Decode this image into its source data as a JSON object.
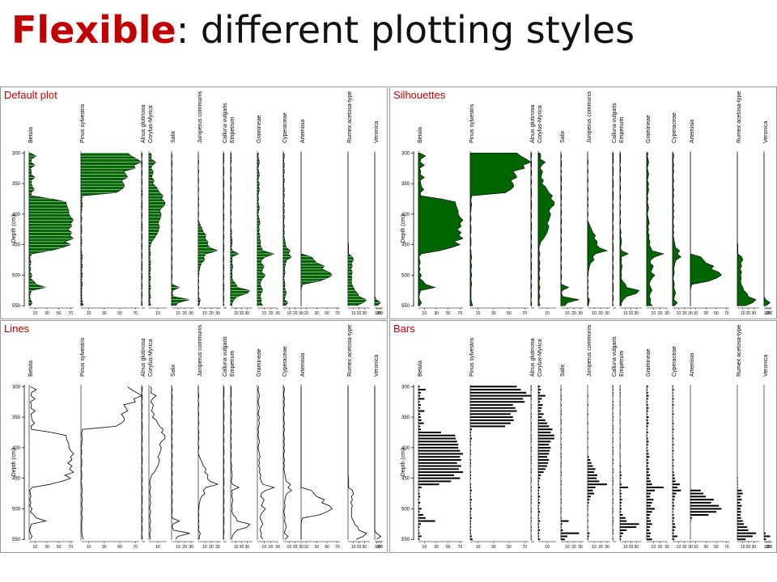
{
  "slide": {
    "title_accent": "Flexible",
    "title_rest": ": different plotting styles"
  },
  "colors": {
    "accent": "#c00000",
    "fill": "#006400",
    "line": "#000000",
    "frame": "#999999"
  },
  "chart_data": {
    "type": "area",
    "ylabel": "Depth (cm)",
    "yticks": [
      300,
      350,
      400,
      450,
      500,
      550
    ],
    "ylim": [
      297,
      551
    ],
    "panels": [
      {
        "title": "Default plot",
        "style": "fill-with-lines"
      },
      {
        "title": "Silhouettes",
        "style": "fill"
      },
      {
        "title": "Lines",
        "style": "line"
      },
      {
        "title": "Bars",
        "style": "bars"
      }
    ],
    "depths": [
      300,
      305,
      310,
      315,
      320,
      325,
      330,
      335,
      340,
      345,
      350,
      355,
      360,
      365,
      370,
      375,
      380,
      385,
      390,
      395,
      400,
      405,
      410,
      415,
      420,
      425,
      430,
      435,
      440,
      445,
      450,
      455,
      460,
      465,
      470,
      475,
      480,
      485,
      490,
      495,
      500,
      505,
      510,
      515,
      520,
      525,
      530,
      535,
      540,
      545,
      550
    ],
    "taxa": [
      {
        "name": "Betula",
        "max": 75,
        "ticks": [
          10,
          30,
          50,
          70
        ],
        "values": [
          2,
          12,
          4,
          3,
          10,
          2,
          4,
          3,
          10,
          3,
          4,
          5,
          9,
          3,
          4,
          38,
          62,
          63,
          65,
          67,
          67,
          70,
          75,
          70,
          72,
          65,
          72,
          68,
          75,
          60,
          70,
          55,
          35,
          5,
          1,
          2,
          3,
          1,
          3,
          1,
          5,
          2,
          8,
          12,
          28,
          4,
          2,
          1,
          2,
          5,
          2
        ]
      },
      {
        "name": "Pinus sylvestris",
        "max": 75,
        "ticks": [
          10,
          30,
          50,
          70
        ],
        "values": [
          60,
          65,
          72,
          78,
          68,
          70,
          55,
          58,
          60,
          52,
          55,
          56,
          52,
          45,
          2,
          1,
          1,
          2,
          1,
          1,
          0,
          1,
          1,
          0,
          1,
          1,
          1,
          0,
          1,
          1,
          1,
          0,
          1,
          1,
          2,
          1,
          1,
          2,
          1,
          1,
          2,
          1,
          1,
          2,
          1,
          1,
          1,
          1,
          1,
          2,
          3
        ]
      },
      {
        "name": "Alnus glutinosa",
        "max": 5,
        "ticks": [],
        "values": [
          1,
          1,
          0,
          1,
          1,
          0,
          1,
          1,
          0,
          1,
          1,
          0,
          1,
          1,
          1,
          0,
          1,
          1,
          1,
          0,
          1,
          1,
          0,
          1,
          1,
          1,
          0,
          1,
          1,
          0,
          1,
          1,
          0,
          1,
          1,
          0,
          1,
          1,
          1,
          0,
          1,
          1,
          0,
          1,
          1,
          0,
          1,
          1,
          0,
          1,
          1
        ]
      },
      {
        "name": "Corylus-Myrica",
        "max": 20,
        "ticks": [
          10
        ],
        "values": [
          2,
          3,
          2,
          8,
          4,
          2,
          5,
          4,
          3,
          6,
          4,
          8,
          10,
          12,
          16,
          14,
          18,
          18,
          14,
          12,
          14,
          13,
          12,
          10,
          12,
          11,
          10,
          8,
          6,
          3,
          2,
          1,
          1,
          2,
          1,
          1,
          2,
          1,
          2,
          1,
          1,
          2,
          1,
          1,
          2,
          1,
          1,
          2,
          1,
          1,
          2
        ]
      },
      {
        "name": "Salix",
        "max": 35,
        "ticks": [
          10,
          20,
          30
        ],
        "values": [
          0,
          1,
          0,
          1,
          1,
          0,
          1,
          0,
          1,
          1,
          0,
          1,
          1,
          0,
          1,
          1,
          0,
          1,
          0,
          1,
          1,
          0,
          1,
          1,
          0,
          1,
          1,
          0,
          1,
          1,
          0,
          1,
          1,
          0,
          1,
          1,
          0,
          1,
          1,
          0,
          1,
          1,
          0,
          1,
          12,
          2,
          1,
          3,
          28,
          10,
          6
        ]
      },
      {
        "name": "Juniperus communis",
        "max": 35,
        "ticks": [
          10,
          20,
          30
        ],
        "values": [
          0,
          0,
          0,
          1,
          0,
          0,
          1,
          0,
          0,
          1,
          0,
          0,
          1,
          0,
          0,
          1,
          0,
          1,
          0,
          0,
          1,
          0,
          0,
          2,
          4,
          6,
          8,
          12,
          10,
          15,
          14,
          18,
          30,
          12,
          8,
          10,
          5,
          3,
          2,
          1,
          1,
          0,
          1,
          0,
          1,
          0,
          1,
          0,
          3,
          2,
          1
        ]
      },
      {
        "name": "Calluna vulgaris",
        "max": 5,
        "ticks": [],
        "values": [
          1,
          1,
          1,
          1,
          0,
          1,
          1,
          1,
          0,
          1,
          1,
          1,
          0,
          1,
          1,
          1,
          0,
          1,
          1,
          0,
          1,
          1,
          1,
          0,
          1,
          1,
          0,
          1,
          1,
          0,
          1,
          1,
          1,
          0,
          1,
          1,
          0,
          1,
          1,
          0,
          1,
          1,
          0,
          1,
          1,
          1,
          0,
          1,
          1,
          0,
          1
        ]
      },
      {
        "name": "Empetrum",
        "max": 40,
        "ticks": [
          10,
          20,
          30
        ],
        "values": [
          1,
          1,
          1,
          1,
          0,
          1,
          1,
          0,
          1,
          1,
          0,
          1,
          1,
          0,
          1,
          1,
          0,
          1,
          0,
          1,
          1,
          0,
          1,
          1,
          0,
          1,
          2,
          1,
          2,
          3,
          2,
          1,
          3,
          15,
          2,
          3,
          2,
          4,
          3,
          2,
          3,
          2,
          5,
          10,
          12,
          35,
          30,
          12,
          6,
          3,
          2
        ]
      },
      {
        "name": "Gramineae",
        "max": 30,
        "ticks": [
          10,
          20,
          30
        ],
        "values": [
          2,
          1,
          2,
          3,
          2,
          1,
          2,
          3,
          2,
          1,
          3,
          2,
          3,
          2,
          1,
          2,
          1,
          2,
          3,
          2,
          1,
          2,
          3,
          4,
          2,
          3,
          2,
          4,
          3,
          5,
          4,
          6,
          8,
          25,
          12,
          6,
          5,
          10,
          8,
          6,
          12,
          8,
          5,
          4,
          6,
          8,
          5,
          4,
          6,
          5,
          8
        ]
      },
      {
        "name": "Cyperaceae",
        "max": 30,
        "ticks": [
          10,
          20,
          30
        ],
        "values": [
          1,
          2,
          1,
          1,
          2,
          1,
          2,
          1,
          1,
          2,
          1,
          1,
          2,
          1,
          2,
          1,
          1,
          2,
          1,
          2,
          1,
          2,
          1,
          1,
          2,
          1,
          2,
          1,
          2,
          3,
          4,
          5,
          12,
          8,
          14,
          6,
          4,
          3,
          2,
          3,
          2,
          1,
          2,
          3,
          2,
          4,
          5,
          3,
          2,
          8,
          3
        ]
      },
      {
        "name": "Artemisia",
        "max": 75,
        "ticks": [
          10,
          30,
          50,
          70
        ],
        "values": [
          0,
          0,
          0,
          0,
          0,
          0,
          0,
          0,
          0,
          0,
          0,
          0,
          0,
          0,
          0,
          0,
          0,
          0,
          0,
          0,
          0,
          0,
          0,
          0,
          0,
          0,
          0,
          0,
          0,
          0,
          0,
          0,
          0,
          0,
          20,
          25,
          30,
          45,
          40,
          55,
          60,
          50,
          35,
          3,
          1,
          0,
          0,
          0,
          0,
          0,
          0
        ]
      },
      {
        "name": "Rumex acetosa-type",
        "max": 40,
        "ticks": [
          10,
          20,
          30
        ],
        "values": [
          0,
          0,
          0,
          0,
          0,
          0,
          0,
          0,
          0,
          0,
          0,
          0,
          0,
          0,
          0,
          0,
          0,
          0,
          0,
          0,
          0,
          0,
          0,
          0,
          0,
          0,
          0,
          0,
          0,
          0,
          1,
          1,
          1,
          1,
          8,
          10,
          6,
          8,
          5,
          8,
          6,
          7,
          6,
          7,
          10,
          12,
          18,
          20,
          34,
          28,
          15
        ]
      },
      {
        "name": "Veronica",
        "max": 40,
        "ticks": [
          10,
          20,
          30
        ],
        "values": [
          0,
          0,
          0,
          0,
          0,
          0,
          0,
          0,
          0,
          0,
          0,
          0,
          0,
          0,
          0,
          0,
          0,
          0,
          0,
          0,
          0,
          0,
          0,
          0,
          0,
          0,
          0,
          0,
          0,
          0,
          0,
          0,
          0,
          0,
          0,
          0,
          0,
          0,
          0,
          0,
          0,
          0,
          0,
          0,
          0,
          0,
          0,
          0,
          8,
          30,
          10
        ]
      }
    ]
  }
}
